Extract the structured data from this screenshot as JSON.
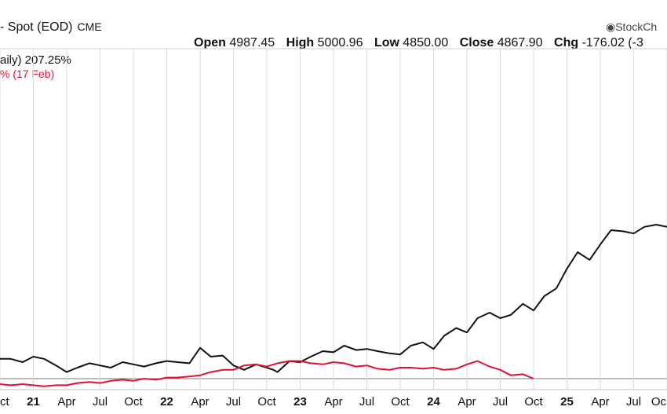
{
  "header": {
    "title": "- Spot (EOD)",
    "exchange": "CME",
    "brand": "StockCh",
    "open_label": "Open",
    "open": "4987.45",
    "high_label": "High",
    "high": "5000.96",
    "low_label": "Low",
    "low": "4850.00",
    "close_label": "Close",
    "close": "4867.90",
    "chg_label": "Chg",
    "chg": "-176.02 (-3"
  },
  "legend": {
    "line1": "aily) 207.25%",
    "line2": "% (17 Feb)"
  },
  "colors": {
    "primary": "#111111",
    "secondary": "#e0103a",
    "grid": "#d9d9d9"
  },
  "chart_data": {
    "type": "line",
    "title": "",
    "xlabel": "",
    "ylabel": "",
    "x_tick_labels": [
      "ct",
      "21",
      "Apr",
      "Jul",
      "Oct",
      "22",
      "Apr",
      "Jul",
      "Oct",
      "23",
      "Apr",
      "Jul",
      "Oct",
      "24",
      "Apr",
      "Jul",
      "Oct",
      "25",
      "Apr",
      "Jul",
      "Oc"
    ],
    "x_range": [
      2020.75,
      2025.75
    ],
    "y_range": [
      -10,
      300
    ],
    "grid": true,
    "series": [
      {
        "name": "",
        "color": "#111111",
        "x": [
          2020.75,
          2020.83,
          2020.92,
          2021.0,
          2021.08,
          2021.17,
          2021.25,
          2021.33,
          2021.42,
          2021.5,
          2021.58,
          2021.67,
          2021.75,
          2021.83,
          2021.92,
          2022.0,
          2022.08,
          2022.17,
          2022.25,
          2022.33,
          2022.42,
          2022.5,
          2022.58,
          2022.67,
          2022.75,
          2022.8,
          2022.83,
          2022.92,
          2023.0,
          2023.08,
          2023.17,
          2023.25,
          2023.33,
          2023.42,
          2023.5,
          2023.58,
          2023.67,
          2023.75,
          2023.83,
          2023.92,
          2024.0,
          2024.08,
          2024.17,
          2024.25,
          2024.33,
          2024.42,
          2024.5,
          2024.58,
          2024.67,
          2024.75,
          2024.83,
          2024.92,
          2025.0,
          2025.08,
          2025.17,
          2025.25,
          2025.33,
          2025.42,
          2025.5,
          2025.58,
          2025.67,
          2025.75
        ],
        "y": [
          18,
          18,
          15,
          20,
          18,
          12,
          6,
          10,
          14,
          12,
          10,
          15,
          13,
          11,
          14,
          16,
          15,
          14,
          28,
          20,
          21,
          12,
          8,
          13,
          10,
          8,
          6,
          16,
          15,
          20,
          25,
          24,
          30,
          26,
          27,
          25,
          23,
          22,
          30,
          33,
          27,
          39,
          46,
          42,
          55,
          60,
          55,
          58,
          68,
          62,
          75,
          82,
          100,
          115,
          108,
          122,
          135,
          134,
          132,
          138,
          140,
          138
        ]
      },
      {
        "name": "",
        "color": "#e0103a",
        "x": [
          2020.75,
          2020.83,
          2020.92,
          2021.0,
          2021.08,
          2021.17,
          2021.25,
          2021.33,
          2021.42,
          2021.5,
          2021.58,
          2021.67,
          2021.75,
          2021.83,
          2021.92,
          2022.0,
          2022.08,
          2022.17,
          2022.25,
          2022.33,
          2022.42,
          2022.5,
          2022.58,
          2022.67,
          2022.75,
          2022.83,
          2022.92,
          2023.0,
          2023.08,
          2023.17,
          2023.25,
          2023.33,
          2023.42,
          2023.5,
          2023.58,
          2023.67,
          2023.75,
          2023.83,
          2023.92,
          2024.0,
          2024.08,
          2024.17,
          2024.25,
          2024.33,
          2024.42,
          2024.5,
          2024.58,
          2024.67,
          2024.75
        ],
        "y": [
          -5,
          -6,
          -5,
          -6,
          -7,
          -6,
          -6,
          -4,
          -3,
          -4,
          -2,
          -1,
          -2,
          0,
          -1,
          1,
          1,
          2,
          3,
          6,
          8,
          8,
          12,
          13,
          11,
          14,
          16,
          16,
          14,
          13,
          15,
          14,
          11,
          12,
          9,
          8,
          10,
          10,
          9,
          10,
          8,
          9,
          13,
          16,
          11,
          8,
          3,
          4,
          0
        ]
      }
    ]
  }
}
